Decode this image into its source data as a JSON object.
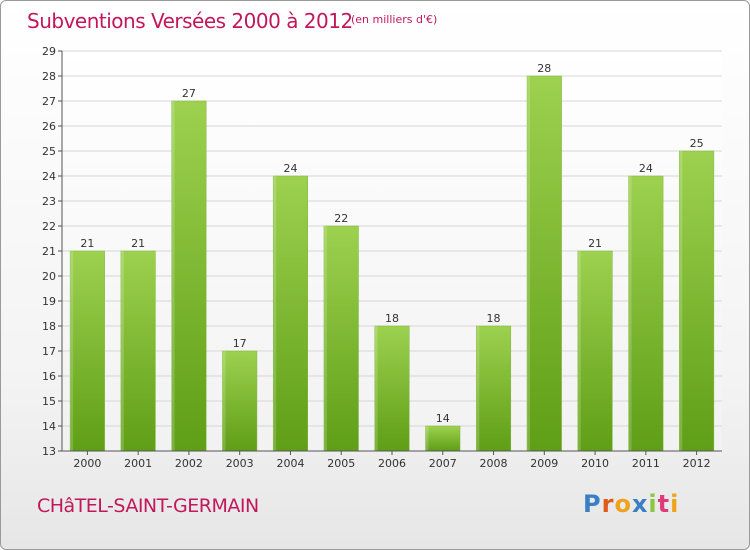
{
  "header": {
    "title": "Subventions Versées 2000 à 2012",
    "unit": "(en milliers d'€)"
  },
  "footer": {
    "commune": "CHâTEL-SAINT-GERMAIN",
    "logo_text": "Proxiti",
    "logo_colors": [
      "#3a7fc4",
      "#e05a1c",
      "#f0a21c",
      "#3a7fc4",
      "#8cc63f",
      "#e03a7a",
      "#f0a21c"
    ]
  },
  "colors": {
    "bar_light": "#9dd14f",
    "bar_dark": "#5f9e17",
    "grid": "#d6d6d6",
    "title": "#c2185b"
  },
  "chart_data": {
    "type": "bar",
    "title": "Subventions Versées 2000 à 2012",
    "subtitle": "(en milliers d'€)",
    "xlabel": "",
    "ylabel": "",
    "categories": [
      "2000",
      "2001",
      "2002",
      "2003",
      "2004",
      "2005",
      "2006",
      "2007",
      "2008",
      "2009",
      "2010",
      "2011",
      "2012"
    ],
    "values": [
      21,
      21,
      27,
      17,
      24,
      22,
      18,
      14,
      18,
      28,
      21,
      24,
      25
    ],
    "ylim": [
      13,
      29
    ],
    "yticks": [
      13,
      14,
      15,
      16,
      17,
      18,
      19,
      20,
      21,
      22,
      23,
      24,
      25,
      26,
      27,
      28,
      29
    ],
    "grid": true,
    "legend": "none"
  }
}
